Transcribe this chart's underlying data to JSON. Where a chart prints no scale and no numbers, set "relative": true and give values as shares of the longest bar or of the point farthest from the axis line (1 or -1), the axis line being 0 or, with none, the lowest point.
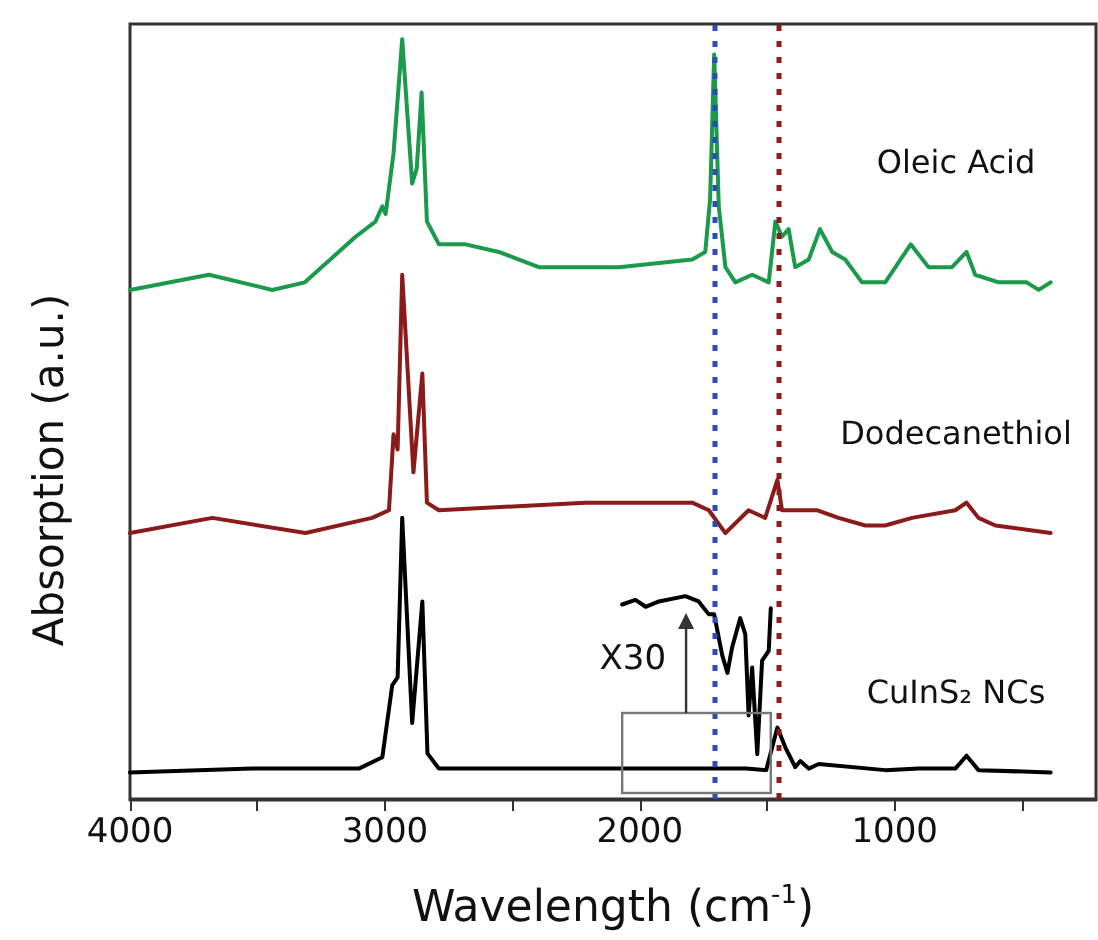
{
  "chart_data": {
    "type": "line",
    "relative": true,
    "xlabel": "Wavelength (cm$^{-1}$)",
    "ylabel": "Absorption (a.u.)",
    "xlim": [
      4000,
      210
    ],
    "xticks": [
      4000,
      {
        "value": 3500,
        "label": null
      },
      3000,
      {
        "value": 2500,
        "label": null
      },
      2000,
      {
        "value": 1500,
        "label": null
      },
      1000,
      {
        "value": 500,
        "label": null
      }
    ],
    "grid": false,
    "legend": false,
    "marker": "none",
    "line_style": "solid",
    "annotations": [
      "X30"
    ],
    "ref_lines": [
      {
        "axis": "x",
        "value": 1708,
        "color": "#2a4db5",
        "line_style": "dotted"
      },
      {
        "axis": "x",
        "value": 1455,
        "color": "#8b1a1a",
        "line_style": "dotted"
      }
    ],
    "series": [
      {
        "name": "Oleic Acid",
        "color": "#1a9a4a",
        "x": [
          4000,
          3690,
          3442,
          3314,
          3115,
          3037,
          3010,
          2997,
          2966,
          2932,
          2893,
          2875,
          2856,
          2835,
          2788,
          2684,
          2553,
          2396,
          2082,
          1794,
          1743,
          1724,
          1708,
          1690,
          1664,
          1625,
          1559,
          1494,
          1468,
          1442,
          1416,
          1390,
          1337,
          1293,
          1245,
          1194,
          1128,
          1037,
          937,
          867,
          775,
          718,
          684,
          592,
          482,
          435,
          388
        ],
        "values": [
          0.67,
          0.69,
          0.67,
          0.68,
          0.74,
          0.76,
          0.78,
          0.77,
          0.85,
          1.0,
          0.81,
          0.83,
          0.93,
          0.76,
          0.73,
          0.73,
          0.72,
          0.7,
          0.7,
          0.71,
          0.72,
          0.79,
          0.98,
          0.78,
          0.7,
          0.68,
          0.69,
          0.68,
          0.76,
          0.74,
          0.75,
          0.7,
          0.71,
          0.75,
          0.72,
          0.71,
          0.68,
          0.68,
          0.73,
          0.7,
          0.7,
          0.72,
          0.69,
          0.68,
          0.68,
          0.67,
          0.68
        ]
      },
      {
        "name": "Dodecanethiol",
        "color": "#8b1a1a",
        "x": [
          4000,
          3677,
          3311,
          3050,
          2984,
          2966,
          2950,
          2932,
          2888,
          2853,
          2835,
          2788,
          2213,
          1794,
          1729,
          1664,
          1573,
          1508,
          1460,
          1442,
          1376,
          1303,
          1220,
          1115,
          1037,
          932,
          762,
          718,
          671,
          605,
          388
        ],
        "values": [
          0.35,
          0.37,
          0.35,
          0.37,
          0.38,
          0.48,
          0.46,
          0.69,
          0.43,
          0.56,
          0.39,
          0.38,
          0.39,
          0.39,
          0.38,
          0.35,
          0.38,
          0.37,
          0.42,
          0.38,
          0.38,
          0.38,
          0.37,
          0.36,
          0.36,
          0.37,
          0.38,
          0.39,
          0.37,
          0.36,
          0.35
        ]
      },
      {
        "name": "CuInS₂ NCs",
        "color": "#000000",
        "x": [
          4000,
          3520,
          3102,
          3010,
          2971,
          2950,
          2932,
          2893,
          2853,
          2833,
          2788,
          1690,
          1582,
          1504,
          1460,
          1429,
          1390,
          1370,
          1337,
          1298,
          1037,
          906,
          762,
          718,
          671,
          388
        ],
        "values": [
          0.035,
          0.04,
          0.04,
          0.055,
          0.15,
          0.16,
          0.37,
          0.1,
          0.26,
          0.06,
          0.04,
          0.04,
          0.04,
          0.038,
          0.094,
          0.068,
          0.042,
          0.05,
          0.04,
          0.046,
          0.038,
          0.04,
          0.04,
          0.057,
          0.038,
          0.035
        ]
      },
      {
        "color": "#000000",
        "x": [
          2069,
          2017,
          1977,
          1925,
          1821,
          1769,
          1729,
          1708,
          1677,
          1656,
          1638,
          1606,
          1586,
          1573,
          1559,
          1539,
          1520,
          1494,
          1486
        ],
        "values": [
          0.256,
          0.262,
          0.253,
          0.26,
          0.267,
          0.26,
          0.243,
          0.243,
          0.19,
          0.166,
          0.199,
          0.238,
          0.217,
          0.11,
          0.173,
          0.059,
          0.182,
          0.195,
          0.251
        ]
      }
    ]
  }
}
